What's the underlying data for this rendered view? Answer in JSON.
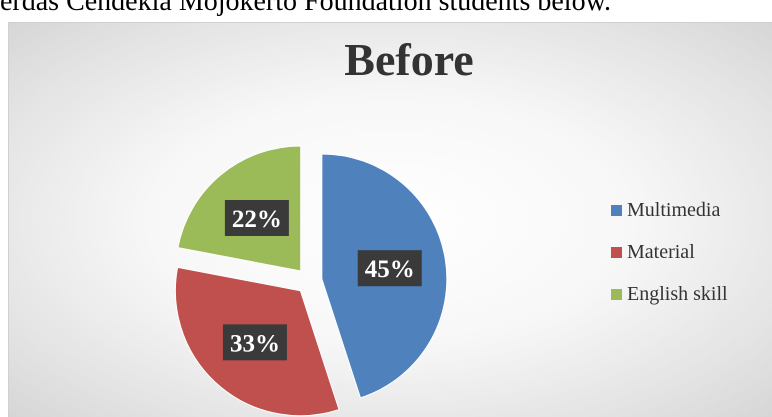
{
  "document": {
    "line_text": "erdas Cendekia Mojokerto Foundation students below."
  },
  "chart_data": {
    "type": "pie",
    "title": "Before",
    "slices": [
      {
        "label": "Multimedia",
        "value": 45,
        "display": "45%",
        "color": "#4F81BD"
      },
      {
        "label": "Material",
        "value": 33,
        "display": "33%",
        "color": "#C0504D"
      },
      {
        "label": "English skill",
        "value": 22,
        "display": "22%",
        "color": "#9BBB59"
      }
    ],
    "legend_position": "right",
    "exploded": true,
    "data_label_style": "dark box, white bold text"
  }
}
